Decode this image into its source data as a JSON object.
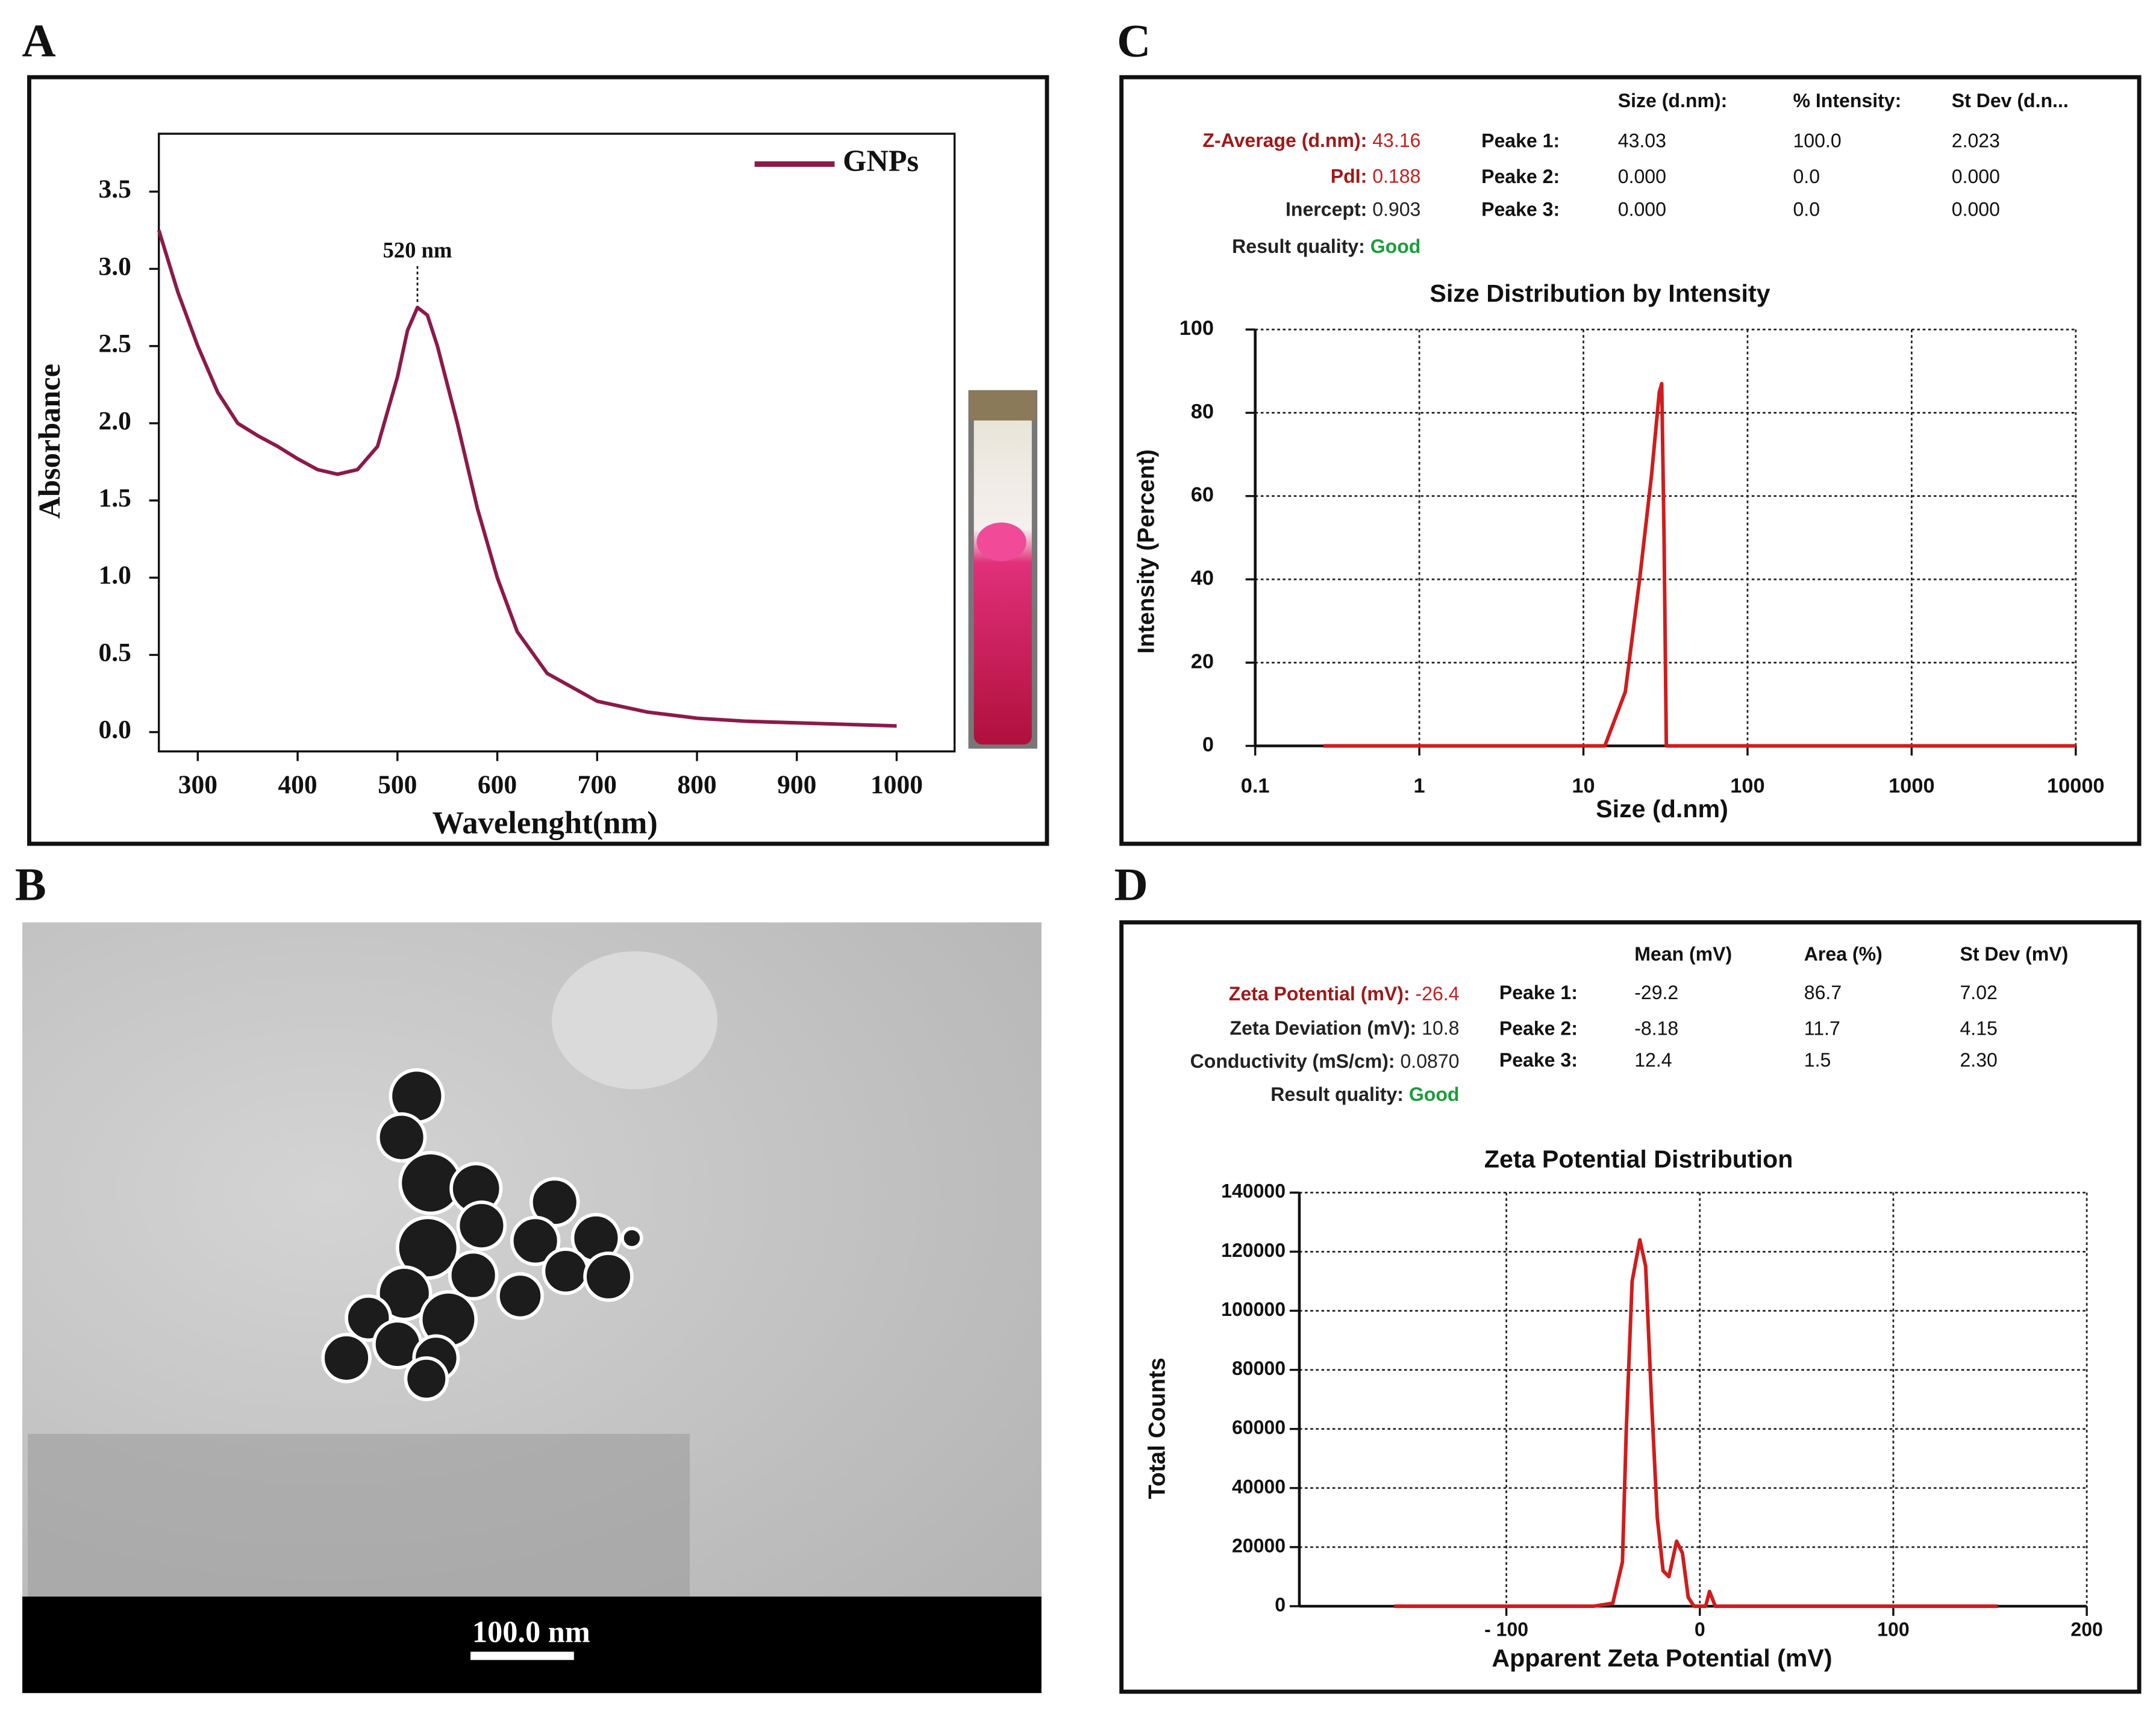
{
  "figure": {
    "panel_labels": [
      "A",
      "B",
      "C",
      "D"
    ],
    "tem_scale_label": "100.0 nm"
  },
  "chart_data": [
    {
      "type": "line",
      "xlabel": "Wavelenght(nm)",
      "ylabel": "Absorbance",
      "x": [
        261,
        280,
        300,
        320,
        340,
        360,
        380,
        400,
        420,
        440,
        460,
        480,
        500,
        510,
        520,
        530,
        540,
        560,
        580,
        600,
        620,
        650,
        700,
        750,
        800,
        850,
        900,
        950,
        1000
      ],
      "series": [
        {
          "name": "GNPs",
          "color": "#8b1a4a",
          "values": [
            3.25,
            2.85,
            2.5,
            2.2,
            2.0,
            1.92,
            1.85,
            1.77,
            1.7,
            1.67,
            1.7,
            1.85,
            2.3,
            2.6,
            2.75,
            2.7,
            2.5,
            2.0,
            1.45,
            1.0,
            0.65,
            0.38,
            0.2,
            0.13,
            0.09,
            0.07,
            0.06,
            0.05,
            0.04
          ]
        }
      ],
      "xlim": [
        261,
        1058
      ],
      "ylim": [
        -0.125,
        3.875
      ],
      "xticks": [
        300,
        400,
        500,
        600,
        700,
        800,
        900,
        1000
      ],
      "yticks": [
        {
          "value": 0,
          "label": "0.0"
        },
        0.5,
        {
          "value": 1,
          "label": "1.0"
        },
        1.5,
        {
          "value": 2,
          "label": "2.0"
        },
        2.5,
        {
          "value": 3,
          "label": "3.0"
        },
        3.5
      ],
      "grid": false,
      "legend": "upper right",
      "annotations": [
        {
          "text": "520 nm",
          "x": 520,
          "y": 2.75
        }
      ]
    },
    {
      "type": "line",
      "title": "Size Distribution by Intensity",
      "xlabel": "Size (d.nm)",
      "ylabel": "Intensity (Percent)",
      "xscale": "log",
      "x": [
        0.26,
        13.5,
        18,
        22,
        26,
        29,
        30,
        31,
        32,
        10000
      ],
      "series": [
        {
          "name": "Intensity",
          "color": "#d01c1c",
          "values": [
            0,
            0,
            13,
            40,
            65,
            85,
            87,
            50,
            0,
            0
          ]
        }
      ],
      "xlim": [
        0.1,
        10000
      ],
      "ylim": [
        0,
        100
      ],
      "xticks": [
        0.1,
        1,
        10,
        100,
        1000,
        10000
      ],
      "yticks": [
        0,
        20,
        40,
        60,
        80,
        100
      ],
      "grid": true
    },
    {
      "type": "line",
      "title": "Zeta Potential Distribution",
      "xlabel": "Apparent Zeta Potential (mV)",
      "ylabel": "Total Counts",
      "x": [
        -158,
        -55,
        -45,
        -40,
        -38,
        -35,
        -31,
        -28,
        -25,
        -22,
        -19,
        -16,
        -12,
        -9,
        -6,
        -3,
        3,
        5,
        8,
        154
      ],
      "series": [
        {
          "name": "Total Counts",
          "color": "#d01c1c",
          "values": [
            0,
            0,
            1000,
            15000,
            60000,
            110000,
            124000,
            115000,
            70000,
            30000,
            12000,
            10000,
            22000,
            18000,
            3000,
            0,
            0,
            5000,
            0,
            0
          ]
        }
      ],
      "xlim": [
        -207,
        200
      ],
      "ylim": [
        0,
        140000
      ],
      "xticks": [
        {
          "value": -100,
          "label": "- 100"
        },
        0,
        100,
        200
      ],
      "yticks": [
        0,
        20000,
        40000,
        60000,
        80000,
        100000,
        120000,
        140000
      ],
      "grid": true
    }
  ],
  "tables": [
    {
      "left": [
        {
          "label": "Z-Average (d.nm):",
          "value": "43.16",
          "label_color": "#a01818",
          "value_color": "#c42020"
        },
        {
          "label": "PdI:",
          "value": "0.188",
          "label_color": "#a01818",
          "value_color": "#c42020"
        },
        {
          "label": "Inercept:",
          "value": "0.903"
        },
        {
          "label": "Result quality:",
          "value": "Good",
          "value_color": "#1a9e3a"
        }
      ],
      "header": [
        "Size (d.nm):",
        "% Intensity:",
        "St Dev (d.n..."
      ],
      "rows": [
        [
          "Peake 1:",
          "43.03",
          "100.0",
          "2.023"
        ],
        [
          "Peake 2:",
          "0.000",
          "0.0",
          "0.000"
        ],
        [
          "Peake 3:",
          "0.000",
          "0.0",
          "0.000"
        ]
      ]
    },
    {
      "left": [
        {
          "label": "Zeta Potential (mV):",
          "value": "-26.4",
          "label_color": "#a01818",
          "value_color": "#c42020"
        },
        {
          "label": "Zeta Deviation (mV):",
          "value": "10.8"
        },
        {
          "label": "Conductivity (mS/cm):",
          "value": "0.0870"
        },
        {
          "label": "Result quality:",
          "value": "Good",
          "value_color": "#1a9e3a"
        }
      ],
      "header": [
        "Mean (mV)",
        "Area (%)",
        "St Dev (mV)"
      ],
      "rows": [
        [
          "Peake 1:",
          "-29.2",
          "86.7",
          "7.02"
        ],
        [
          "Peake 2:",
          "-8.18",
          "11.7",
          "4.15"
        ],
        [
          "Peake 3:",
          "12.4",
          "1.5",
          "2.30"
        ]
      ]
    }
  ]
}
